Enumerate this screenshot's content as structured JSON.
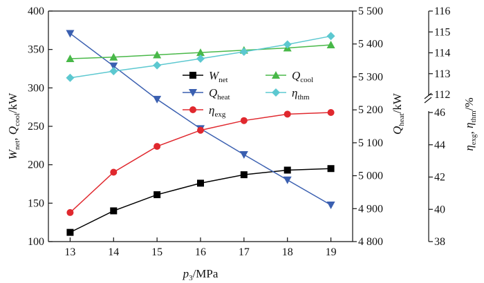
{
  "chart_data": {
    "type": "line",
    "x": [
      13,
      14,
      15,
      16,
      17,
      18,
      19
    ],
    "xlim": [
      12.5,
      19.5
    ],
    "xticks": [
      "13",
      "14",
      "15",
      "16",
      "17",
      "18",
      "19"
    ],
    "xlabel": {
      "main": "p",
      "sub": "3",
      "rest": "/MPa"
    },
    "left_axis": {
      "label": {
        "a": "W",
        "a_sub": "net",
        "b": ", Q",
        "b_sub": "cool",
        "c": "/kW"
      },
      "ylim": [
        100,
        400
      ],
      "ticks": [
        "100",
        "150",
        "200",
        "250",
        "300",
        "350",
        "400"
      ]
    },
    "mid_axis": {
      "label": {
        "a": "Q",
        "a_sub": "heat",
        "c": "/kW"
      },
      "ylim": [
        4800,
        5500
      ],
      "ticks": [
        "4 800",
        "4 900",
        "5 000",
        "5 100",
        "5 200",
        "5 300",
        "5 400",
        "5 500"
      ]
    },
    "right_axis": {
      "label": {
        "a": "η",
        "a_sub": "exg",
        "b": ", η",
        "b_sub": "thm",
        "c": "/%"
      },
      "upper_ylim": [
        112,
        116
      ],
      "upper_ticks": [
        "112",
        "113",
        "114",
        "115",
        "116"
      ],
      "lower_ylim": [
        38,
        46
      ],
      "lower_ticks": [
        "38",
        "40",
        "42",
        "44",
        "46"
      ],
      "broken": true
    },
    "series": [
      {
        "name": "W",
        "sub": "net",
        "axis": "left",
        "marker": "square",
        "color": "#000000",
        "values": [
          112,
          140,
          161,
          176,
          187,
          193,
          195
        ]
      },
      {
        "name": "Q",
        "sub": "heat",
        "axis": "mid",
        "marker": "triangle-down",
        "color": "#3a5fb0",
        "values": [
          5432,
          5333,
          5232,
          5143,
          5064,
          4987,
          4911
        ]
      },
      {
        "name": "η",
        "sub": "exg",
        "axis": "right-lower",
        "marker": "circle",
        "color": "#e0282e",
        "values": [
          39.8,
          42.3,
          43.9,
          44.9,
          45.5,
          45.9,
          46.0
        ]
      },
      {
        "name": "Q",
        "sub": "cool",
        "axis": "left",
        "marker": "triangle-up",
        "color": "#48b848",
        "values": [
          338,
          340,
          343,
          346,
          349,
          352,
          356
        ]
      },
      {
        "name": "η",
        "sub": "thm",
        "axis": "right-upper",
        "marker": "diamond",
        "color": "#5cc8d0",
        "values": [
          112.8,
          113.12,
          113.4,
          113.72,
          114.05,
          114.4,
          114.8
        ]
      }
    ],
    "legend_position": "center"
  }
}
